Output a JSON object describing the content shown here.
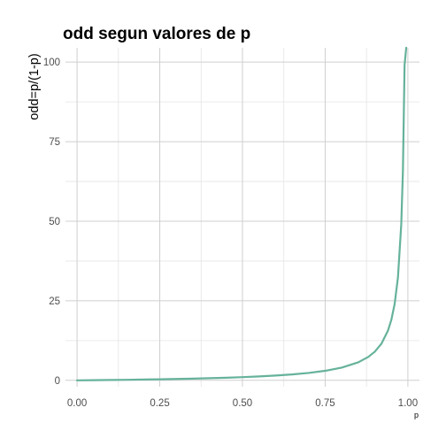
{
  "chart_data": {
    "type": "line",
    "title": "odd segun valores de p",
    "xlabel": "p",
    "ylabel": "odd=p/(1-p)",
    "xlim": [
      -0.035,
      1.035
    ],
    "ylim": [
      -2.0,
      104.5
    ],
    "x_ticks": [
      0.0,
      0.25,
      0.5,
      0.75,
      1.0
    ],
    "x_tick_labels": [
      "0.00",
      "0.25",
      "0.50",
      "0.75",
      "1.00"
    ],
    "y_ticks": [
      0,
      25,
      50,
      75,
      100
    ],
    "y_tick_labels": [
      "0",
      "25",
      "50",
      "75",
      "100"
    ],
    "grid": true,
    "series": [
      {
        "color": "#66b29b",
        "x": [
          0.0,
          0.05,
          0.1,
          0.15,
          0.2,
          0.25,
          0.3,
          0.35,
          0.4,
          0.45,
          0.5,
          0.55,
          0.6,
          0.65,
          0.7,
          0.75,
          0.8,
          0.85,
          0.88,
          0.9,
          0.92,
          0.94,
          0.95,
          0.96,
          0.97,
          0.98,
          0.985,
          0.99,
          0.995
        ],
        "y": [
          0.0,
          0.053,
          0.111,
          0.176,
          0.25,
          0.333,
          0.429,
          0.538,
          0.667,
          0.818,
          1.0,
          1.222,
          1.5,
          1.857,
          2.333,
          3.0,
          4.0,
          5.667,
          7.333,
          9.0,
          11.5,
          15.667,
          19.0,
          24.0,
          32.333,
          49.0,
          65.667,
          99.0,
          104.5
        ]
      }
    ]
  }
}
